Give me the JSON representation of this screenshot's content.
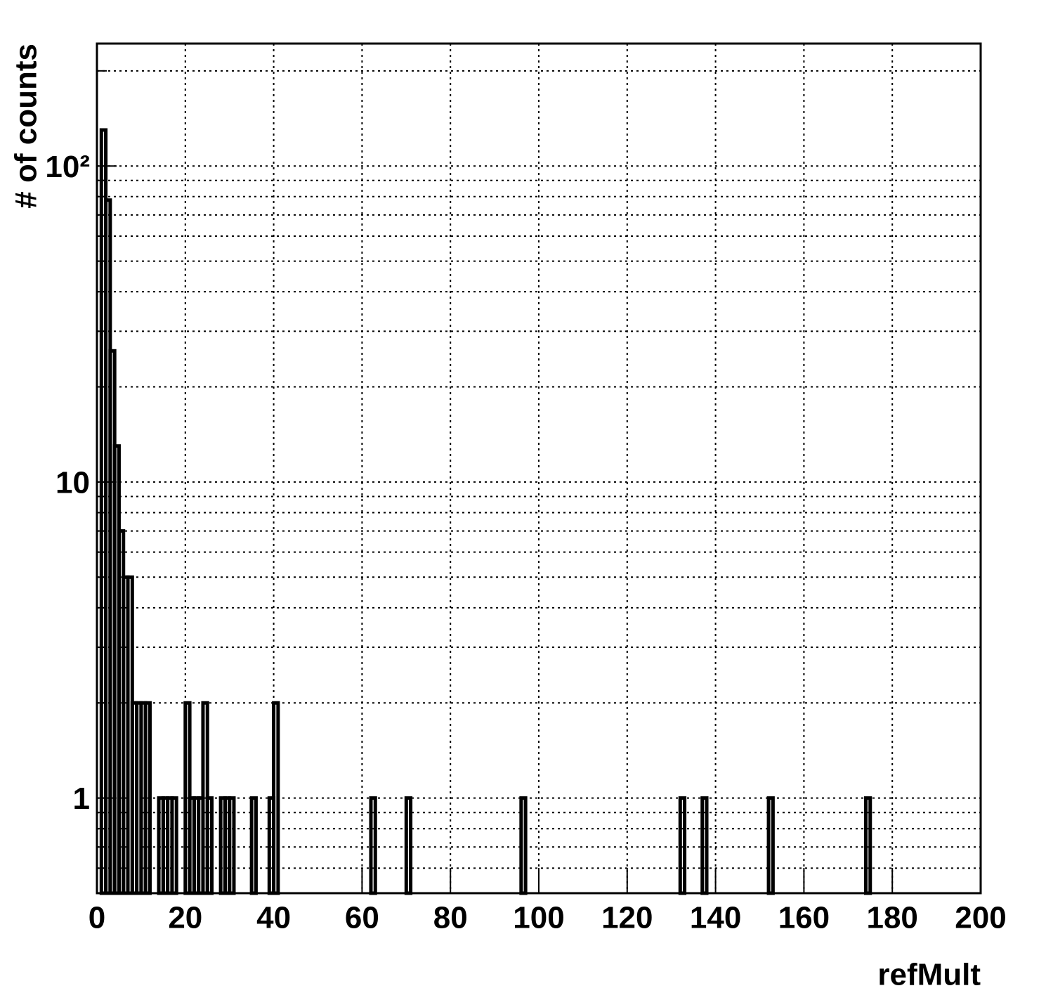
{
  "chart_data": {
    "type": "histogram",
    "xlabel": "refMult",
    "ylabel": "# of counts",
    "bins": [
      0,
      1,
      2,
      3,
      4,
      5,
      6,
      7,
      8,
      9,
      10,
      11,
      12,
      13,
      14,
      15,
      16,
      17,
      18,
      19,
      20,
      21,
      22,
      23,
      24,
      25,
      26,
      27,
      28,
      29,
      30,
      31,
      32,
      33,
      34,
      35,
      36,
      37,
      38,
      39,
      40,
      41,
      42,
      43,
      44,
      45,
      46,
      47,
      48,
      49,
      50,
      51,
      52,
      53,
      54,
      55,
      56,
      57,
      58,
      59,
      60,
      61,
      62,
      63,
      64,
      65,
      66,
      67,
      68,
      69,
      70,
      71,
      72,
      73,
      74,
      75,
      76,
      77,
      78,
      79,
      80,
      81,
      82,
      83,
      84,
      85,
      86,
      87,
      88,
      89,
      90,
      91,
      92,
      93,
      94,
      95,
      96,
      97,
      98,
      99,
      100,
      101,
      102,
      103,
      104,
      105,
      106,
      107,
      108,
      109,
      110,
      111,
      112,
      113,
      114,
      115,
      116,
      117,
      118,
      119,
      120,
      121,
      122,
      123,
      124,
      125,
      126,
      127,
      128,
      129,
      130,
      131,
      132,
      133,
      134,
      135,
      136,
      137,
      138,
      139,
      140,
      141,
      142,
      143,
      144,
      145,
      146,
      147,
      148,
      149,
      150,
      151,
      152,
      153,
      154,
      155,
      156,
      157,
      158,
      159,
      160,
      161,
      162,
      163,
      164,
      165,
      166,
      167,
      168,
      169,
      170,
      171,
      172,
      173,
      174,
      175,
      176,
      177,
      178,
      179,
      180,
      181,
      182,
      183,
      184,
      185,
      186,
      187,
      188,
      189,
      190,
      191,
      192,
      193,
      194,
      195,
      196,
      197,
      198,
      199,
      200
    ],
    "values": [
      0,
      130,
      78,
      26,
      13,
      7,
      5,
      5,
      2,
      2,
      2,
      2,
      0,
      0,
      1,
      1,
      1,
      1,
      0,
      0,
      2,
      1,
      1,
      1,
      2,
      1,
      0,
      0,
      1,
      1,
      1,
      0,
      0,
      0,
      0,
      1,
      0,
      0,
      0,
      1,
      2,
      0,
      0,
      0,
      0,
      0,
      0,
      0,
      0,
      0,
      0,
      0,
      0,
      0,
      0,
      0,
      0,
      0,
      0,
      0,
      0,
      0,
      1,
      0,
      0,
      0,
      0,
      0,
      0,
      0,
      1,
      0,
      0,
      0,
      0,
      0,
      0,
      0,
      0,
      0,
      0,
      0,
      0,
      0,
      0,
      0,
      0,
      0,
      0,
      0,
      0,
      0,
      0,
      0,
      0,
      0,
      1,
      0,
      0,
      0,
      0,
      0,
      0,
      0,
      0,
      0,
      0,
      0,
      0,
      0,
      0,
      0,
      0,
      0,
      0,
      0,
      0,
      0,
      0,
      0,
      0,
      0,
      0,
      0,
      0,
      0,
      0,
      0,
      0,
      0,
      0,
      0,
      1,
      0,
      0,
      0,
      0,
      1,
      0,
      0,
      0,
      0,
      0,
      0,
      0,
      0,
      0,
      0,
      0,
      0,
      0,
      0,
      1,
      0,
      0,
      0,
      0,
      0,
      0,
      0,
      0,
      0,
      0,
      0,
      0,
      0,
      0,
      0,
      0,
      0,
      0,
      0,
      0,
      0,
      1,
      0,
      0,
      0,
      0,
      0,
      0,
      0,
      0,
      0,
      0,
      0,
      0,
      0,
      0,
      0,
      0,
      0,
      0,
      0,
      0,
      0,
      0,
      0,
      0,
      0
    ],
    "color": "#000000",
    "xlim": [
      0,
      200
    ],
    "xticks": [
      0,
      20,
      40,
      60,
      80,
      100,
      120,
      140,
      160,
      180,
      200
    ],
    "ylim": [
      0.5,
      244
    ],
    "log_y": true,
    "yticks": [
      1,
      10,
      {
        "value": 100,
        "label": "10²"
      }
    ],
    "yminor_ticks": [
      0.6,
      0.7,
      0.8,
      0.9,
      2,
      3,
      4,
      5,
      6,
      7,
      8,
      9,
      20,
      30,
      40,
      50,
      60,
      70,
      80,
      90,
      200
    ],
    "grid": true
  }
}
